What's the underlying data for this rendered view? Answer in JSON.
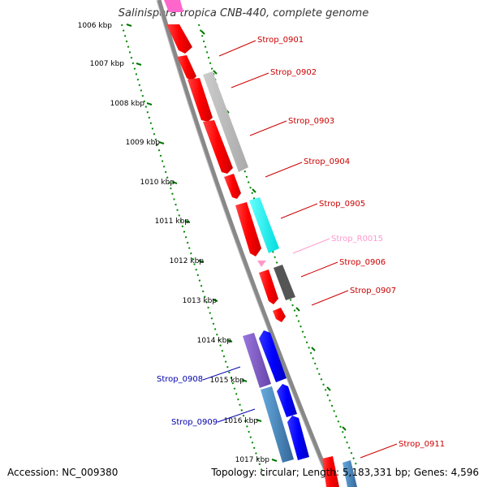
{
  "header": {
    "title": "Salinispora tropica CNB-440, complete genome"
  },
  "footer": {
    "accession": "Accession: NC_009380",
    "topology": "Topology: circular; Length: 5,183,331 bp; Genes: 4,596"
  },
  "colors": {
    "forward_gene": "#ff0000",
    "reverse_gene": "#0000ff",
    "rrna": "#ff99cc",
    "cds_gray": "#bbbbbb",
    "cds_cyan": "#00ffff",
    "cds_dark": "#555555",
    "cds_purple": "#8866cc",
    "cds_steel": "#4488bb",
    "scale_tick": "#008800",
    "backbone": "#888888"
  },
  "scale": {
    "unit": "kbp",
    "ticks": [
      {
        "kbp": 1006,
        "label": "1006 kbp"
      },
      {
        "kbp": 1007,
        "label": "1007 kbp"
      },
      {
        "kbp": 1008,
        "label": "1008 kbp"
      },
      {
        "kbp": 1009,
        "label": "1009 kbp"
      },
      {
        "kbp": 1010,
        "label": "1010 kbp"
      },
      {
        "kbp": 1011,
        "label": "1011 kbp"
      },
      {
        "kbp": 1012,
        "label": "1012 kbp"
      },
      {
        "kbp": 1013,
        "label": "1013 kbp"
      },
      {
        "kbp": 1014,
        "label": "1014 kbp"
      },
      {
        "kbp": 1015,
        "label": "1015 kbp"
      },
      {
        "kbp": 1016,
        "label": "1016 kbp"
      },
      {
        "kbp": 1017,
        "label": "1017 kbp"
      }
    ]
  },
  "gene_labels": [
    {
      "name": "Strop_0901",
      "strand": "forward",
      "color": "#cc0000"
    },
    {
      "name": "Strop_0902",
      "strand": "forward",
      "color": "#cc0000"
    },
    {
      "name": "Strop_0903",
      "strand": "forward",
      "color": "#cc0000"
    },
    {
      "name": "Strop_0904",
      "strand": "forward",
      "color": "#cc0000"
    },
    {
      "name": "Strop_0905",
      "strand": "forward",
      "color": "#cc0000"
    },
    {
      "name": "Strop_R0015",
      "strand": "forward",
      "color": "#ff99cc"
    },
    {
      "name": "Strop_0906",
      "strand": "forward",
      "color": "#cc0000"
    },
    {
      "name": "Strop_0907",
      "strand": "forward",
      "color": "#cc0000"
    },
    {
      "name": "Strop_0908",
      "strand": "reverse",
      "color": "#0000aa"
    },
    {
      "name": "Strop_0909",
      "strand": "reverse",
      "color": "#0000aa"
    },
    {
      "name": "Strop_0911",
      "strand": "forward",
      "color": "#cc0000"
    }
  ]
}
